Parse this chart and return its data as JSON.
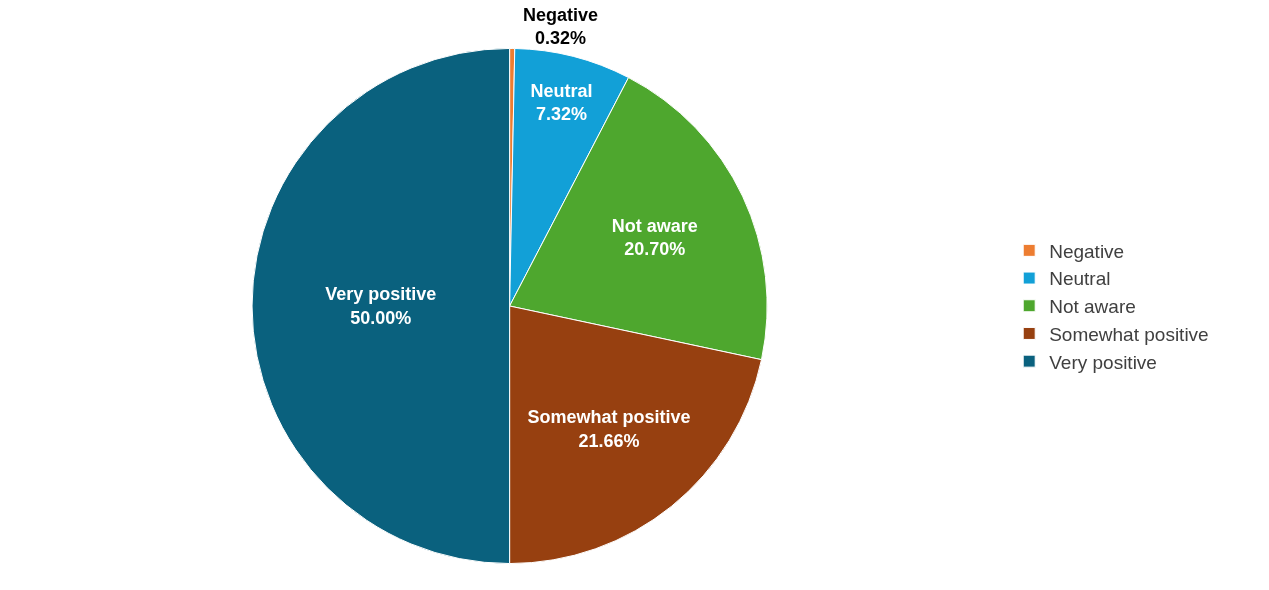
{
  "chart_data": {
    "type": "pie",
    "categories": [
      "Negative",
      "Neutral",
      "Not aware",
      "Somewhat positive",
      "Very positive"
    ],
    "values": [
      0.32,
      7.32,
      20.7,
      21.66,
      50.0
    ],
    "value_labels": [
      "0.32%",
      "7.32%",
      "20.70%",
      "21.66%",
      "50.00%"
    ],
    "colors": [
      "#ed7d31",
      "#12a0d7",
      "#4ea72e",
      "#974010",
      "#0a617e"
    ],
    "legend": "right"
  }
}
